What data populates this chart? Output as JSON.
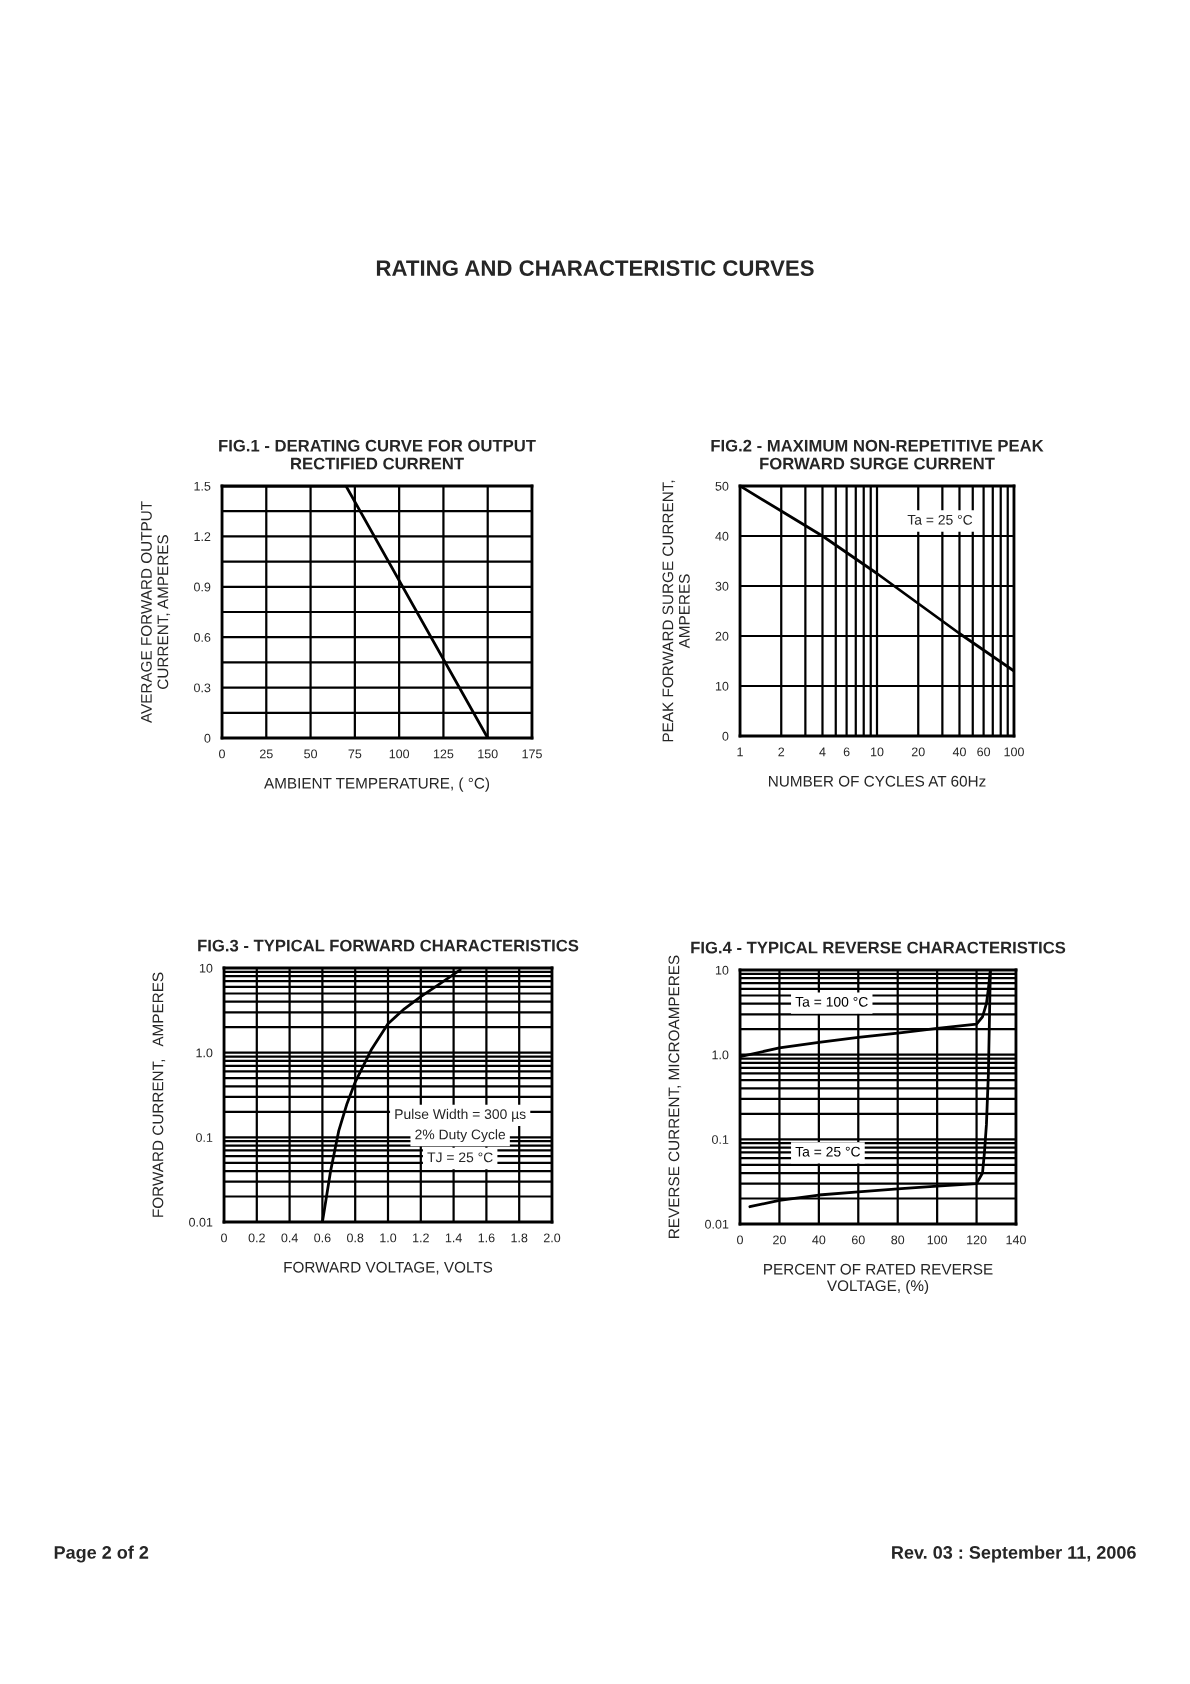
{
  "chart_data": [
    {
      "type": "line",
      "title": "FIG.1 - DERATING CURVE FOR OUTPUT\nRECTIFIED CURRENT",
      "xlabel": "AMBIENT TEMPERATURE, ( °C)",
      "ylabel": "AVERAGE FORWARD OUTPUT\nCURRENT, AMPERES",
      "series": [
        {
          "color": "#000000",
          "x": [
            0,
            70,
            150
          ],
          "values": [
            1.5,
            1.5,
            0
          ]
        }
      ],
      "xlim": [
        0,
        175
      ],
      "ylim": [
        0,
        1.5
      ],
      "xticks": [
        0,
        25,
        50,
        75,
        100,
        125,
        150,
        175
      ],
      "yticks": [
        0,
        {
          "value": 0.15,
          "label": null
        },
        0.3,
        {
          "value": 0.45,
          "label": null
        },
        0.6,
        {
          "value": 0.75,
          "label": null
        },
        0.9,
        {
          "value": 1.05,
          "label": null
        },
        1.2,
        {
          "value": 1.35,
          "label": null
        },
        1.5
      ],
      "grid": true,
      "annotations": [
        "RATING AND CHARACTERISTIC CURVES",
        "Page 2 of 2",
        "Rev. 03 : September 11, 2006"
      ]
    },
    {
      "type": "line",
      "title": "FIG.2 - MAXIMUM NON-REPETITIVE PEAK\nFORWARD SURGE CURRENT",
      "xlabel": "NUMBER OF CYCLES AT 60Hz",
      "ylabel": "PEAK FORWARD SURGE CURRENT,\nAMPERES",
      "series": [
        {
          "color": "#000000",
          "x": [
            1,
            2,
            4,
            10,
            20,
            40,
            100
          ],
          "values": [
            50,
            45,
            40,
            32.5,
            26.5,
            20.5,
            13
          ]
        }
      ],
      "log": "x",
      "xlim": [
        1,
        100
      ],
      "ylim": [
        0,
        50
      ],
      "xticks": [
        1,
        2,
        {
          "value": 3,
          "label": null
        },
        4,
        {
          "value": 5,
          "label": null
        },
        6,
        {
          "value": 7,
          "label": null
        },
        {
          "value": 8,
          "label": null
        },
        {
          "value": 9,
          "label": null
        },
        10,
        20,
        {
          "value": 30,
          "label": null
        },
        40,
        {
          "value": 50,
          "label": null
        },
        60,
        {
          "value": 70,
          "label": null
        },
        {
          "value": 80,
          "label": null
        },
        {
          "value": 90,
          "label": null
        },
        100
      ],
      "yticks": [
        0,
        10,
        20,
        30,
        40,
        50
      ],
      "grid": true,
      "annotations": [
        "Ta = 25 °C"
      ]
    },
    {
      "type": "line",
      "title": "FIG.3 - TYPICAL FORWARD CHARACTERISTICS",
      "xlabel": "FORWARD VOLTAGE, VOLTS",
      "ylabel": "FORWARD CURRENT,   AMPERES",
      "series": [
        {
          "color": "#000000",
          "x": [
            0.6,
            0.65,
            0.7,
            0.75,
            0.8,
            0.9,
            1.0,
            1.1,
            1.2,
            1.3,
            1.44
          ],
          "values": [
            0.01,
            0.04,
            0.12,
            0.25,
            0.45,
            1.1,
            2.2,
            3.3,
            4.6,
            6.2,
            9.5
          ]
        }
      ],
      "log": "y",
      "xlim": [
        0,
        2
      ],
      "ylim": [
        0.01,
        10
      ],
      "xticks": [
        0,
        0.2,
        0.4,
        0.6,
        0.8,
        {
          "value": 1,
          "label": "1.0"
        },
        1.2,
        1.4,
        1.6,
        1.8,
        {
          "value": 2,
          "label": "2.0"
        }
      ],
      "yticks": [
        0.01,
        {
          "value": 0.02,
          "label": null
        },
        {
          "value": 0.03,
          "label": null
        },
        {
          "value": 0.04,
          "label": null
        },
        {
          "value": 0.05,
          "label": null
        },
        {
          "value": 0.06,
          "label": null
        },
        {
          "value": 0.07,
          "label": null
        },
        {
          "value": 0.08,
          "label": null
        },
        {
          "value": 0.09,
          "label": null
        },
        0.1,
        {
          "value": 0.2,
          "label": null
        },
        {
          "value": 0.3,
          "label": null
        },
        {
          "value": 0.4,
          "label": null
        },
        {
          "value": 0.5,
          "label": null
        },
        {
          "value": 0.6,
          "label": null
        },
        {
          "value": 0.7,
          "label": null
        },
        {
          "value": 0.8,
          "label": null
        },
        {
          "value": 0.9,
          "label": null
        },
        {
          "value": 1,
          "label": "1.0"
        },
        {
          "value": 2,
          "label": null
        },
        {
          "value": 3,
          "label": null
        },
        {
          "value": 4,
          "label": null
        },
        {
          "value": 5,
          "label": null
        },
        {
          "value": 6,
          "label": null
        },
        {
          "value": 7,
          "label": null
        },
        {
          "value": 8,
          "label": null
        },
        {
          "value": 9,
          "label": null
        },
        10
      ],
      "grid": true,
      "annotations": [
        "Pulse Width = 300 µs",
        "2% Duty Cycle",
        "TJ = 25 °C"
      ]
    },
    {
      "type": "line",
      "title": "FIG.4 - TYPICAL REVERSE CHARACTERISTICS",
      "xlabel": "PERCENT OF RATED REVERSE\nVOLTAGE, (%)",
      "ylabel": "REVERSE CURRENT, MICROAMPERES",
      "series": [
        {
          "name": "Ta = 100 °C",
          "color": "#000000",
          "x": [
            0,
            20,
            40,
            60,
            80,
            100,
            120,
            123,
            125,
            126,
            127
          ],
          "values": [
            0.95,
            1.2,
            1.4,
            1.6,
            1.8,
            2.05,
            2.3,
            2.8,
            4,
            6,
            10
          ]
        },
        {
          "name": "Ta = 25 °C",
          "color": "#000000",
          "x": [
            5,
            20,
            40,
            60,
            80,
            100,
            120,
            123,
            124,
            125,
            126,
            127
          ],
          "values": [
            0.016,
            0.019,
            0.022,
            0.024,
            0.026,
            0.028,
            0.03,
            0.04,
            0.07,
            0.15,
            0.6,
            10
          ]
        }
      ],
      "log": "y",
      "xlim": [
        0,
        140
      ],
      "ylim": [
        0.01,
        10
      ],
      "xticks": [
        0,
        20,
        40,
        60,
        80,
        100,
        120,
        140
      ],
      "yticks": [
        0.01,
        {
          "value": 0.02,
          "label": null
        },
        {
          "value": 0.03,
          "label": null
        },
        {
          "value": 0.04,
          "label": null
        },
        {
          "value": 0.05,
          "label": null
        },
        {
          "value": 0.06,
          "label": null
        },
        {
          "value": 0.07,
          "label": null
        },
        {
          "value": 0.08,
          "label": null
        },
        {
          "value": 0.09,
          "label": null
        },
        0.1,
        {
          "value": 0.2,
          "label": null
        },
        {
          "value": 0.3,
          "label": null
        },
        {
          "value": 0.4,
          "label": null
        },
        {
          "value": 0.5,
          "label": null
        },
        {
          "value": 0.6,
          "label": null
        },
        {
          "value": 0.7,
          "label": null
        },
        {
          "value": 0.8,
          "label": null
        },
        {
          "value": 0.9,
          "label": null
        },
        {
          "value": 1,
          "label": "1.0"
        },
        {
          "value": 2,
          "label": null
        },
        {
          "value": 3,
          "label": null
        },
        {
          "value": 4,
          "label": null
        },
        {
          "value": 5,
          "label": null
        },
        {
          "value": 6,
          "label": null
        },
        {
          "value": 7,
          "label": null
        },
        {
          "value": 8,
          "label": null
        },
        {
          "value": 9,
          "label": null
        },
        10
      ],
      "grid": true
    }
  ]
}
